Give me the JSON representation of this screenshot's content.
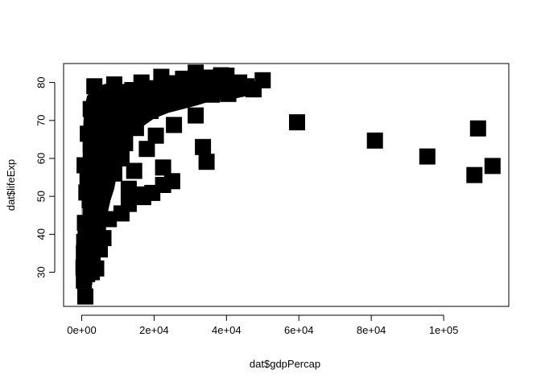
{
  "chart_data": {
    "type": "scatter",
    "title": "",
    "xlabel": "dat$gdpPercap",
    "ylabel": "dat$lifeExp",
    "xlim": [
      -5000,
      118000
    ],
    "ylim": [
      21,
      85
    ],
    "xticks": [
      {
        "value": 0,
        "label": "0e+00"
      },
      {
        "value": 20000,
        "label": "2e+04"
      },
      {
        "value": 40000,
        "label": "4e+04"
      },
      {
        "value": 60000,
        "label": "6e+04"
      },
      {
        "value": 80000,
        "label": "8e+04"
      },
      {
        "value": 100000,
        "label": "1e+05"
      }
    ],
    "yticks": [
      {
        "value": 30,
        "label": "30"
      },
      {
        "value": 40,
        "label": "40"
      },
      {
        "value": 50,
        "label": "50"
      },
      {
        "value": 60,
        "label": "60"
      },
      {
        "value": 70,
        "label": "70"
      },
      {
        "value": 80,
        "label": "80"
      }
    ],
    "grid": false,
    "legend": "none",
    "marker": "filled-square",
    "marker_color": "#000000",
    "points": [
      [
        1000,
        23.6
      ],
      [
        700,
        28.8
      ],
      [
        1500,
        29.5
      ],
      [
        2500,
        30.3
      ],
      [
        4000,
        31.0
      ],
      [
        500,
        31.2
      ],
      [
        900,
        32.0
      ],
      [
        3000,
        33.0
      ],
      [
        1200,
        34.0
      ],
      [
        600,
        35.1
      ],
      [
        5000,
        36.0
      ],
      [
        1800,
        37.0
      ],
      [
        700,
        38.0
      ],
      [
        6000,
        39.0
      ],
      [
        2000,
        40.1
      ],
      [
        1100,
        41.0
      ],
      [
        4500,
        42.0
      ],
      [
        900,
        43.0
      ],
      [
        7500,
        44.0
      ],
      [
        11000,
        45.5
      ],
      [
        3500,
        46.0
      ],
      [
        13000,
        48.0
      ],
      [
        2200,
        49.0
      ],
      [
        17000,
        49.8
      ],
      [
        16000,
        50.5
      ],
      [
        19500,
        50.9
      ],
      [
        1300,
        51.0
      ],
      [
        13000,
        52.0
      ],
      [
        22500,
        53.0
      ],
      [
        5000,
        53.5
      ],
      [
        25000,
        54.0
      ],
      [
        1600,
        55.0
      ],
      [
        9000,
        56.0
      ],
      [
        14500,
        56.7
      ],
      [
        3000,
        57.2
      ],
      [
        22500,
        57.6
      ],
      [
        800,
        58.2
      ],
      [
        34500,
        59.1
      ],
      [
        11000,
        60.0
      ],
      [
        4500,
        61.0
      ],
      [
        6000,
        62.0
      ],
      [
        18000,
        62.5
      ],
      [
        33500,
        63.0
      ],
      [
        2500,
        63.5
      ],
      [
        12000,
        64.0
      ],
      [
        7000,
        65.0
      ],
      [
        20500,
        66.0
      ],
      [
        1700,
        66.5
      ],
      [
        9500,
        67.0
      ],
      [
        15000,
        68.0
      ],
      [
        25500,
        68.8
      ],
      [
        3500,
        69.0
      ],
      [
        6500,
        70.0
      ],
      [
        31500,
        71.3
      ],
      [
        12500,
        72.0
      ],
      [
        19000,
        72.5
      ],
      [
        2500,
        73.0
      ],
      [
        8000,
        74.0
      ],
      [
        23500,
        74.5
      ],
      [
        27500,
        75.5
      ],
      [
        5500,
        76.0
      ],
      [
        15500,
        76.5
      ],
      [
        36000,
        76.8
      ],
      [
        40500,
        77.0
      ],
      [
        11000,
        77.5
      ],
      [
        29000,
        78.0
      ],
      [
        47500,
        78.2
      ],
      [
        20000,
        78.5
      ],
      [
        3500,
        79.0
      ],
      [
        33500,
        79.2
      ],
      [
        9000,
        79.5
      ],
      [
        24500,
        79.8
      ],
      [
        43500,
        80.0
      ],
      [
        16500,
        80.0
      ],
      [
        39500,
        80.5
      ],
      [
        50000,
        80.6
      ],
      [
        28000,
        81.0
      ],
      [
        35000,
        81.3
      ],
      [
        22000,
        81.5
      ],
      [
        40000,
        81.8
      ],
      [
        31500,
        82.6
      ],
      [
        38500,
        81.9
      ],
      [
        29000,
        80.2
      ],
      [
        45500,
        79.0
      ],
      [
        14000,
        78.0
      ],
      [
        7000,
        77.0
      ],
      [
        600,
        27.8
      ],
      [
        2800,
        30.0
      ],
      [
        1400,
        36.5
      ],
      [
        4000,
        48.5
      ],
      [
        8500,
        58.0
      ],
      [
        3000,
        66.0
      ],
      [
        10000,
        70.5
      ],
      [
        14000,
        74.0
      ],
      [
        18000,
        76.2
      ],
      [
        59500,
        69.5
      ],
      [
        81000,
        64.7
      ],
      [
        95500,
        60.5
      ],
      [
        108500,
        55.6
      ],
      [
        109500,
        67.9
      ],
      [
        113500,
        58.0
      ]
    ],
    "dense_band": [
      [
        0,
        28
      ],
      [
        0,
        31
      ],
      [
        0,
        37
      ],
      [
        0,
        43
      ],
      [
        0,
        49
      ],
      [
        0,
        55
      ],
      [
        0,
        61
      ],
      [
        150,
        27
      ],
      [
        300,
        65
      ],
      [
        500,
        70
      ],
      [
        900,
        74
      ],
      [
        1500,
        76.5
      ],
      [
        2500,
        77.5
      ],
      [
        4000,
        78.5
      ],
      [
        6000,
        79.5
      ],
      [
        8000,
        80
      ],
      [
        10000,
        80
      ],
      [
        12000,
        79
      ],
      [
        14000,
        77.5
      ],
      [
        17000,
        78.5
      ],
      [
        21000,
        80
      ],
      [
        25000,
        81
      ],
      [
        30000,
        82
      ],
      [
        35000,
        82.5
      ],
      [
        40000,
        82
      ],
      [
        45000,
        80.5
      ],
      [
        50000,
        80
      ],
      [
        50000,
        79
      ],
      [
        46000,
        76.5
      ],
      [
        41000,
        75.5
      ],
      [
        36000,
        75.2
      ],
      [
        32000,
        74
      ],
      [
        28000,
        73
      ],
      [
        24000,
        72
      ],
      [
        20000,
        70.5
      ],
      [
        17000,
        68.5
      ],
      [
        14000,
        66
      ],
      [
        12000,
        62
      ],
      [
        10000,
        57
      ],
      [
        9000,
        52
      ],
      [
        8000,
        49
      ],
      [
        7000,
        45
      ],
      [
        6000,
        42
      ],
      [
        5000,
        39.5
      ],
      [
        4000,
        37
      ],
      [
        3000,
        34
      ],
      [
        2500,
        31.5
      ],
      [
        2000,
        29.5
      ],
      [
        1500,
        28
      ],
      [
        800,
        27.5
      ]
    ]
  }
}
